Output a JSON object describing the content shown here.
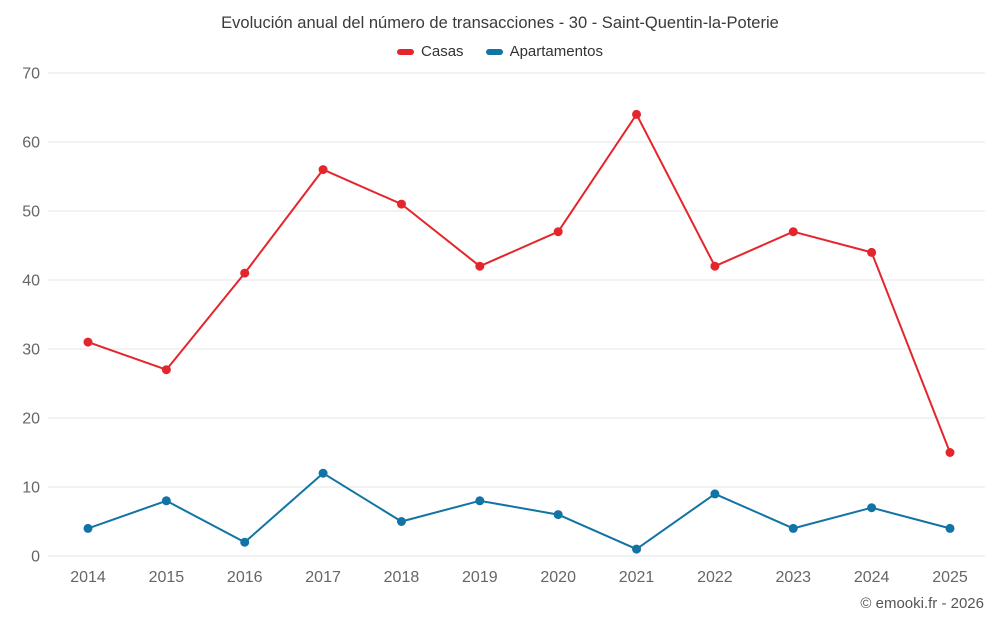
{
  "chart_data": {
    "type": "line",
    "title": "Evolución anual del número de transacciones - 30 - Saint-Quentin-la-Poterie",
    "categories": [
      "2014",
      "2015",
      "2016",
      "2017",
      "2018",
      "2019",
      "2020",
      "2021",
      "2022",
      "2023",
      "2024",
      "2025"
    ],
    "series": [
      {
        "name": "Casas",
        "color": "#e4262c",
        "values": [
          31,
          27,
          41,
          56,
          51,
          42,
          47,
          64,
          42,
          47,
          44,
          15
        ]
      },
      {
        "name": "Apartamentos",
        "color": "#1273a5",
        "values": [
          4,
          8,
          2,
          12,
          5,
          8,
          6,
          1,
          9,
          4,
          7,
          4
        ]
      }
    ],
    "ylim": [
      0,
      70
    ],
    "ytick_step": 10,
    "grid": true,
    "legend_position": "top",
    "xlabel": "",
    "ylabel": ""
  },
  "footer": {
    "copyright": "© emooki.fr - 2026"
  }
}
